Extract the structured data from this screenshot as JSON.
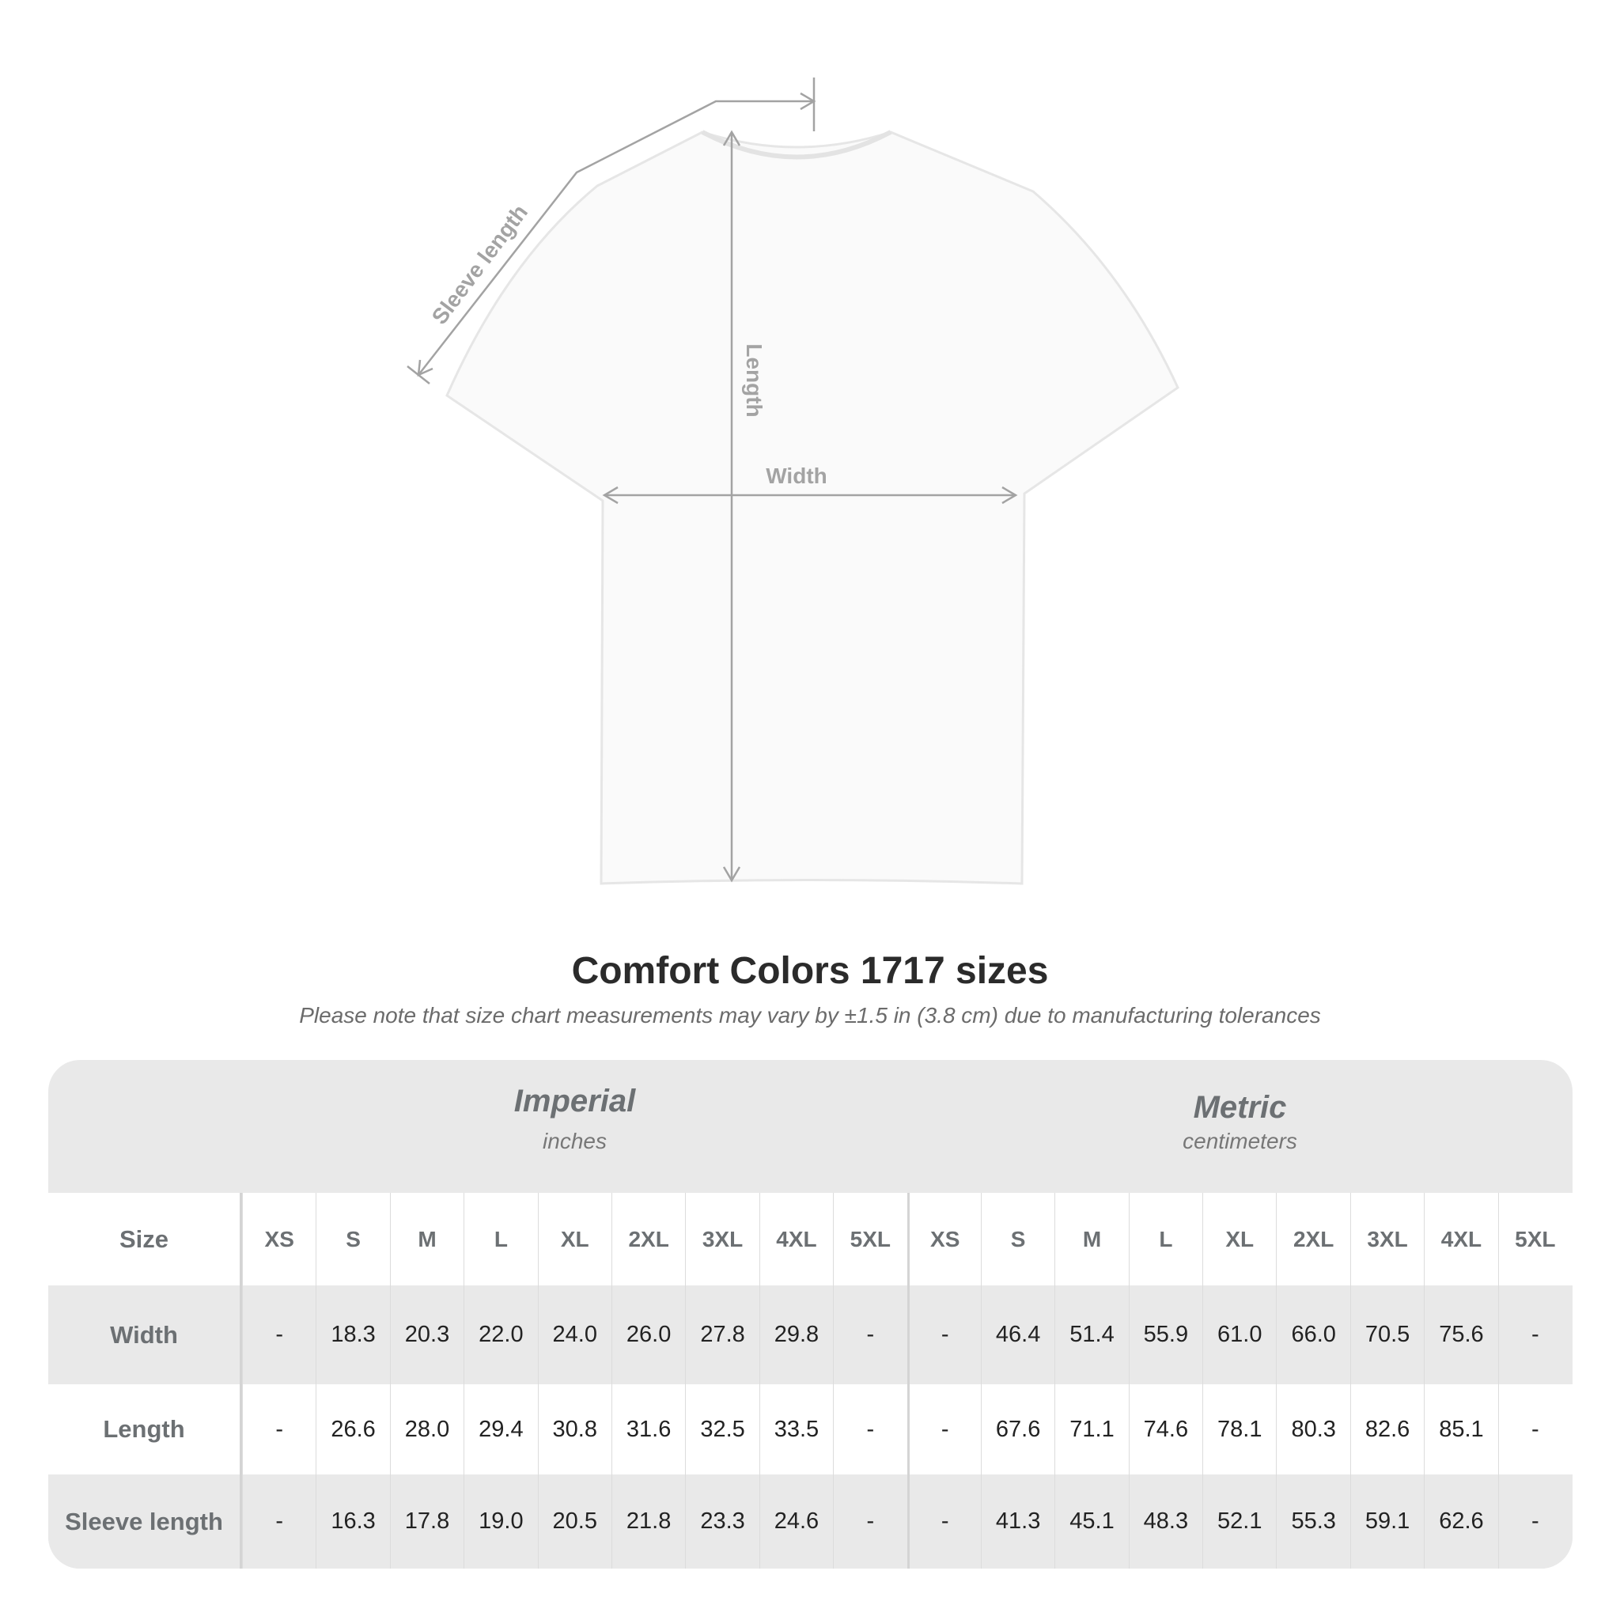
{
  "diagram": {
    "labels": {
      "sleeve": "Sleeve length",
      "length": "Length",
      "width": "Width"
    },
    "line_color": "#a3a3a3"
  },
  "title": "Comfort Colors 1717 sizes",
  "note": "Please note that size chart measurements may vary by ±1.5 in (3.8 cm) due to manufacturing tolerances",
  "table": {
    "imperial": {
      "name": "Imperial",
      "unit": "inches"
    },
    "metric": {
      "name": "Metric",
      "unit": "centimeters"
    },
    "size_label": "Size",
    "sizes": [
      "XS",
      "S",
      "M",
      "L",
      "XL",
      "2XL",
      "3XL",
      "4XL",
      "5XL"
    ],
    "rows": [
      {
        "label": "Width",
        "imperial": [
          "-",
          "18.3",
          "20.3",
          "22.0",
          "24.0",
          "26.0",
          "27.8",
          "29.8",
          "-"
        ],
        "metric": [
          "-",
          "46.4",
          "51.4",
          "55.9",
          "61.0",
          "66.0",
          "70.5",
          "75.6",
          "-"
        ]
      },
      {
        "label": "Length",
        "imperial": [
          "-",
          "26.6",
          "28.0",
          "29.4",
          "30.8",
          "31.6",
          "32.5",
          "33.5",
          "-"
        ],
        "metric": [
          "-",
          "67.6",
          "71.1",
          "74.6",
          "78.1",
          "80.3",
          "82.6",
          "85.1",
          "-"
        ]
      },
      {
        "label": "Sleeve length",
        "imperial": [
          "-",
          "16.3",
          "17.8",
          "19.0",
          "20.5",
          "21.8",
          "23.3",
          "24.6",
          "-"
        ],
        "metric": [
          "-",
          "41.3",
          "45.1",
          "48.3",
          "52.1",
          "55.3",
          "59.1",
          "62.6",
          "-"
        ]
      }
    ]
  }
}
